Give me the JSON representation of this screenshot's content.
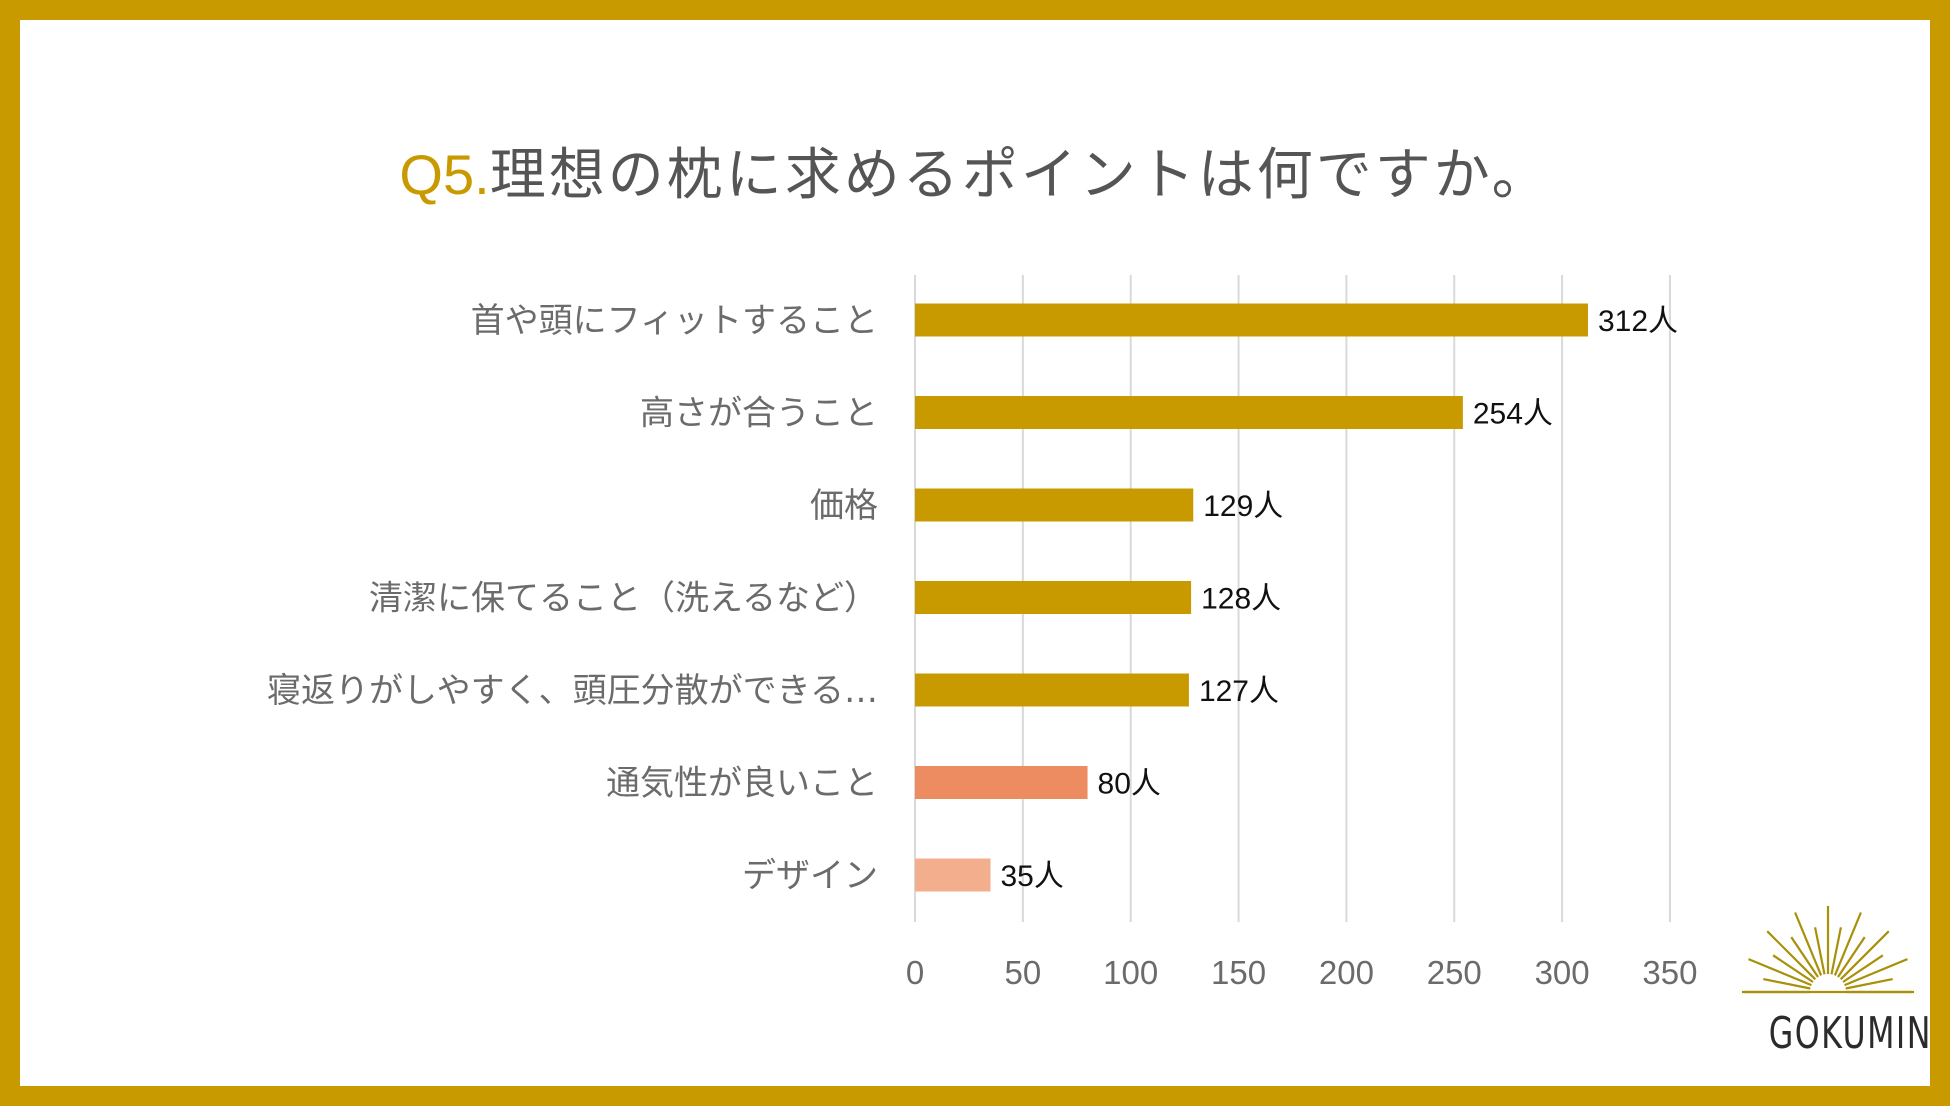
{
  "title": {
    "prefix": "Q5.",
    "text": "理想の枕に求めるポイントは何ですか。"
  },
  "brand": {
    "name": "GOKUMIN"
  },
  "colors": {
    "frame": "#C99A00",
    "primary": "#C99A00",
    "secondary": "#ED8C60",
    "tertiary": "#F3AE8E",
    "grid": "#d9d9d9"
  },
  "chart_data": {
    "type": "bar",
    "orientation": "horizontal",
    "title": "Q5.理想の枕に求めるポイントは何ですか。",
    "categories": [
      "首や頭にフィットすること",
      "高さが合うこと",
      "価格",
      "清潔に保てること（洗えるなど）",
      "寝返りがしやすく、頭圧分散ができる…",
      "通気性が良いこと",
      "デザイン"
    ],
    "values": [
      312,
      254,
      129,
      128,
      127,
      80,
      35
    ],
    "data_labels": [
      "312人",
      "254人",
      "129人",
      "128人",
      "127人",
      "80人",
      "35人"
    ],
    "bar_colors": [
      "#C99A00",
      "#C99A00",
      "#C99A00",
      "#C99A00",
      "#C99A00",
      "#ED8C60",
      "#F3AE8E"
    ],
    "xlim": [
      0,
      350
    ],
    "xticks": [
      0,
      50,
      100,
      150,
      200,
      250,
      300,
      350
    ],
    "xlabel": "",
    "ylabel": "",
    "grid": true,
    "unit": "人"
  }
}
